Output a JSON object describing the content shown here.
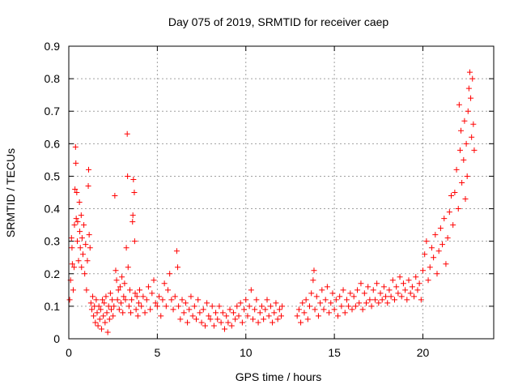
{
  "chart_data": {
    "type": "scatter",
    "title": "Day 075 of 2019, SRMTID for receiver caep",
    "xlabel": "GPS time / hours",
    "ylabel": "SRMTID / TECUs",
    "xlim": [
      0,
      24
    ],
    "ylim": [
      0,
      0.9
    ],
    "x_ticks": [
      0,
      5,
      10,
      15,
      20
    ],
    "x_tick_labels": [
      "0",
      "5",
      "10",
      "15",
      "20"
    ],
    "y_ticks": [
      0,
      0.1,
      0.2,
      0.3,
      0.4,
      0.5,
      0.6,
      0.7,
      0.8,
      0.9
    ],
    "y_tick_labels": [
      "0",
      "0.1",
      "0.2",
      "0.3",
      "0.4",
      "0.5",
      "0.6",
      "0.7",
      "0.8",
      "0.9"
    ],
    "grid": true,
    "marker": "+",
    "color": "#ff0000",
    "series": [
      {
        "name": "SRMTID",
        "points": [
          [
            0.05,
            0.12
          ],
          [
            0.1,
            0.18
          ],
          [
            0.15,
            0.31
          ],
          [
            0.18,
            0.28
          ],
          [
            0.2,
            0.23
          ],
          [
            0.25,
            0.15
          ],
          [
            0.3,
            0.22
          ],
          [
            0.32,
            0.35
          ],
          [
            0.35,
            0.46
          ],
          [
            0.38,
            0.59
          ],
          [
            0.4,
            0.54
          ],
          [
            0.42,
            0.37
          ],
          [
            0.45,
            0.45
          ],
          [
            0.48,
            0.3
          ],
          [
            0.5,
            0.36
          ],
          [
            0.55,
            0.24
          ],
          [
            0.6,
            0.42
          ],
          [
            0.62,
            0.33
          ],
          [
            0.65,
            0.28
          ],
          [
            0.7,
            0.38
          ],
          [
            0.72,
            0.22
          ],
          [
            0.75,
            0.31
          ],
          [
            0.8,
            0.26
          ],
          [
            0.85,
            0.35
          ],
          [
            0.9,
            0.2
          ],
          [
            0.95,
            0.29
          ],
          [
            1.0,
            0.15
          ],
          [
            1.05,
            0.24
          ],
          [
            1.1,
            0.47
          ],
          [
            1.12,
            0.52
          ],
          [
            1.15,
            0.32
          ],
          [
            1.2,
            0.28
          ],
          [
            1.25,
            0.11
          ],
          [
            1.3,
            0.09
          ],
          [
            1.35,
            0.13
          ],
          [
            1.4,
            0.07
          ],
          [
            1.45,
            0.1
          ],
          [
            1.5,
            0.05
          ],
          [
            1.55,
            0.12
          ],
          [
            1.6,
            0.08
          ],
          [
            1.65,
            0.04
          ],
          [
            1.7,
            0.1
          ],
          [
            1.75,
            0.06
          ],
          [
            1.8,
            0.09
          ],
          [
            1.85,
            0.03
          ],
          [
            1.9,
            0.12
          ],
          [
            1.95,
            0.07
          ],
          [
            2.0,
            0.11
          ],
          [
            2.05,
            0.05
          ],
          [
            2.1,
            0.13
          ],
          [
            2.15,
            0.08
          ],
          [
            2.2,
            0.02
          ],
          [
            2.25,
            0.1
          ],
          [
            2.3,
            0.06
          ],
          [
            2.35,
            0.14
          ],
          [
            2.4,
            0.09
          ],
          [
            2.45,
            0.12
          ],
          [
            2.5,
            0.07
          ],
          [
            2.55,
            0.1
          ],
          [
            2.6,
            0.44
          ],
          [
            2.65,
            0.21
          ],
          [
            2.7,
            0.18
          ],
          [
            2.75,
            0.12
          ],
          [
            2.8,
            0.15
          ],
          [
            2.85,
            0.09
          ],
          [
            2.9,
            0.16
          ],
          [
            2.95,
            0.11
          ],
          [
            3.0,
            0.19
          ],
          [
            3.05,
            0.08
          ],
          [
            3.1,
            0.13
          ],
          [
            3.15,
            0.17
          ],
          [
            3.2,
            0.12
          ],
          [
            3.25,
            0.28
          ],
          [
            3.3,
            0.63
          ],
          [
            3.32,
            0.5
          ],
          [
            3.35,
            0.22
          ],
          [
            3.4,
            0.1
          ],
          [
            3.45,
            0.15
          ],
          [
            3.5,
            0.08
          ],
          [
            3.55,
            0.12
          ],
          [
            3.6,
            0.36
          ],
          [
            3.62,
            0.38
          ],
          [
            3.65,
            0.49
          ],
          [
            3.7,
            0.45
          ],
          [
            3.72,
            0.3
          ],
          [
            3.75,
            0.14
          ],
          [
            3.8,
            0.09
          ],
          [
            3.85,
            0.13
          ],
          [
            3.9,
            0.07
          ],
          [
            3.95,
            0.11
          ],
          [
            4.0,
            0.15
          ],
          [
            4.1,
            0.1
          ],
          [
            4.2,
            0.13
          ],
          [
            4.3,
            0.08
          ],
          [
            4.4,
            0.12
          ],
          [
            4.5,
            0.16
          ],
          [
            4.6,
            0.09
          ],
          [
            4.7,
            0.14
          ],
          [
            4.8,
            0.18
          ],
          [
            4.9,
            0.11
          ],
          [
            5.0,
            0.1
          ],
          [
            5.1,
            0.13
          ],
          [
            5.2,
            0.07
          ],
          [
            5.3,
            0.12
          ],
          [
            5.4,
            0.17
          ],
          [
            5.5,
            0.1
          ],
          [
            5.6,
            0.15
          ],
          [
            5.7,
            0.2
          ],
          [
            5.8,
            0.12
          ],
          [
            5.9,
            0.09
          ],
          [
            6.0,
            0.13
          ],
          [
            6.1,
            0.27
          ],
          [
            6.15,
            0.22
          ],
          [
            6.2,
            0.1
          ],
          [
            6.3,
            0.06
          ],
          [
            6.4,
            0.12
          ],
          [
            6.5,
            0.08
          ],
          [
            6.6,
            0.11
          ],
          [
            6.7,
            0.05
          ],
          [
            6.8,
            0.09
          ],
          [
            6.9,
            0.13
          ],
          [
            7.0,
            0.07
          ],
          [
            7.1,
            0.1
          ],
          [
            7.2,
            0.06
          ],
          [
            7.3,
            0.12
          ],
          [
            7.4,
            0.08
          ],
          [
            7.5,
            0.05
          ],
          [
            7.6,
            0.09
          ],
          [
            7.7,
            0.04
          ],
          [
            7.8,
            0.11
          ],
          [
            7.9,
            0.07
          ],
          [
            8.0,
            0.06
          ],
          [
            8.1,
            0.1
          ],
          [
            8.2,
            0.04
          ],
          [
            8.3,
            0.08
          ],
          [
            8.4,
            0.06
          ],
          [
            8.5,
            0.1
          ],
          [
            8.6,
            0.05
          ],
          [
            8.7,
            0.08
          ],
          [
            8.8,
            0.03
          ],
          [
            8.9,
            0.07
          ],
          [
            9.0,
            0.05
          ],
          [
            9.1,
            0.09
          ],
          [
            9.2,
            0.04
          ],
          [
            9.3,
            0.08
          ],
          [
            9.4,
            0.06
          ],
          [
            9.5,
            0.1
          ],
          [
            9.6,
            0.07
          ],
          [
            9.7,
            0.11
          ],
          [
            9.8,
            0.05
          ],
          [
            9.9,
            0.09
          ],
          [
            10.0,
            0.12
          ],
          [
            10.1,
            0.07
          ],
          [
            10.2,
            0.1
          ],
          [
            10.3,
            0.15
          ],
          [
            10.4,
            0.06
          ],
          [
            10.5,
            0.09
          ],
          [
            10.6,
            0.12
          ],
          [
            10.7,
            0.05
          ],
          [
            10.8,
            0.08
          ],
          [
            10.9,
            0.1
          ],
          [
            11.0,
            0.06
          ],
          [
            11.1,
            0.09
          ],
          [
            11.2,
            0.12
          ],
          [
            11.3,
            0.07
          ],
          [
            11.4,
            0.1
          ],
          [
            11.5,
            0.05
          ],
          [
            11.6,
            0.08
          ],
          [
            11.7,
            0.11
          ],
          [
            11.8,
            0.06
          ],
          [
            11.9,
            0.09
          ],
          [
            12.0,
            0.07
          ],
          [
            12.05,
            0.1
          ],
          [
            12.9,
            0.07
          ],
          [
            13.0,
            0.09
          ],
          [
            13.1,
            0.05
          ],
          [
            13.2,
            0.11
          ],
          [
            13.3,
            0.08
          ],
          [
            13.4,
            0.12
          ],
          [
            13.5,
            0.06
          ],
          [
            13.6,
            0.1
          ],
          [
            13.7,
            0.14
          ],
          [
            13.8,
            0.18
          ],
          [
            13.85,
            0.21
          ],
          [
            13.9,
            0.09
          ],
          [
            14.0,
            0.13
          ],
          [
            14.1,
            0.07
          ],
          [
            14.2,
            0.11
          ],
          [
            14.3,
            0.15
          ],
          [
            14.4,
            0.09
          ],
          [
            14.5,
            0.12
          ],
          [
            14.6,
            0.16
          ],
          [
            14.7,
            0.08
          ],
          [
            14.8,
            0.11
          ],
          [
            14.9,
            0.14
          ],
          [
            15.0,
            0.09
          ],
          [
            15.1,
            0.12
          ],
          [
            15.2,
            0.07
          ],
          [
            15.3,
            0.13
          ],
          [
            15.4,
            0.1
          ],
          [
            15.5,
            0.15
          ],
          [
            15.6,
            0.08
          ],
          [
            15.7,
            0.12
          ],
          [
            15.8,
            0.1
          ],
          [
            15.9,
            0.14
          ],
          [
            16.0,
            0.09
          ],
          [
            16.1,
            0.13
          ],
          [
            16.2,
            0.1
          ],
          [
            16.3,
            0.15
          ],
          [
            16.4,
            0.11
          ],
          [
            16.5,
            0.17
          ],
          [
            16.6,
            0.09
          ],
          [
            16.7,
            0.14
          ],
          [
            16.8,
            0.11
          ],
          [
            16.9,
            0.16
          ],
          [
            17.0,
            0.12
          ],
          [
            17.1,
            0.1
          ],
          [
            17.2,
            0.15
          ],
          [
            17.3,
            0.12
          ],
          [
            17.4,
            0.17
          ],
          [
            17.5,
            0.11
          ],
          [
            17.6,
            0.14
          ],
          [
            17.7,
            0.12
          ],
          [
            17.8,
            0.16
          ],
          [
            17.9,
            0.13
          ],
          [
            18.0,
            0.11
          ],
          [
            18.1,
            0.15
          ],
          [
            18.2,
            0.13
          ],
          [
            18.3,
            0.18
          ],
          [
            18.4,
            0.12
          ],
          [
            18.5,
            0.16
          ],
          [
            18.6,
            0.14
          ],
          [
            18.7,
            0.19
          ],
          [
            18.8,
            0.13
          ],
          [
            18.9,
            0.17
          ],
          [
            19.0,
            0.15
          ],
          [
            19.1,
            0.12
          ],
          [
            19.2,
            0.18
          ],
          [
            19.3,
            0.14
          ],
          [
            19.4,
            0.16
          ],
          [
            19.5,
            0.13
          ],
          [
            19.6,
            0.19
          ],
          [
            19.7,
            0.15
          ],
          [
            19.8,
            0.17
          ],
          [
            19.9,
            0.12
          ],
          [
            20.0,
            0.21
          ],
          [
            20.1,
            0.26
          ],
          [
            20.2,
            0.3
          ],
          [
            20.3,
            0.18
          ],
          [
            20.4,
            0.22
          ],
          [
            20.5,
            0.28
          ],
          [
            20.6,
            0.25
          ],
          [
            20.7,
            0.32
          ],
          [
            20.8,
            0.2
          ],
          [
            20.9,
            0.27
          ],
          [
            21.0,
            0.34
          ],
          [
            21.1,
            0.29
          ],
          [
            21.2,
            0.37
          ],
          [
            21.3,
            0.23
          ],
          [
            21.4,
            0.31
          ],
          [
            21.5,
            0.39
          ],
          [
            21.6,
            0.44
          ],
          [
            21.7,
            0.35
          ],
          [
            21.8,
            0.45
          ],
          [
            21.9,
            0.52
          ],
          [
            22.0,
            0.4
          ],
          [
            22.05,
            0.72
          ],
          [
            22.1,
            0.58
          ],
          [
            22.15,
            0.64
          ],
          [
            22.2,
            0.48
          ],
          [
            22.3,
            0.55
          ],
          [
            22.35,
            0.67
          ],
          [
            22.4,
            0.43
          ],
          [
            22.45,
            0.6
          ],
          [
            22.5,
            0.5
          ],
          [
            22.55,
            0.7
          ],
          [
            22.6,
            0.77
          ],
          [
            22.65,
            0.82
          ],
          [
            22.7,
            0.74
          ],
          [
            22.75,
            0.62
          ],
          [
            22.8,
            0.8
          ],
          [
            22.85,
            0.66
          ],
          [
            22.9,
            0.58
          ]
        ]
      }
    ]
  }
}
